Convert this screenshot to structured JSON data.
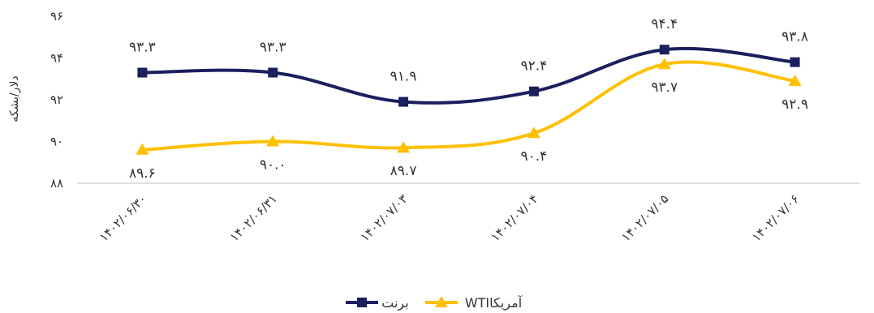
{
  "chart_data": {
    "type": "line",
    "title": "",
    "xlabel": "",
    "ylabel": "دلار/بشکه",
    "ylim": [
      88,
      96
    ],
    "y_ticks": [
      "۸۸",
      "۹۰",
      "۹۲",
      "۹۴",
      "۹۶"
    ],
    "categories": [
      "۱۴۰۲/۰۶/۳۰",
      "۱۴۰۲/۰۶/۳۱",
      "۱۴۰۲/۰۷/۰۳",
      "۱۴۰۲/۰۷/۰۴",
      "۱۴۰۲/۰۷/۰۵",
      "۱۴۰۲/۰۷/۰۶"
    ],
    "grid": false,
    "legend_position": "bottom",
    "series": [
      {
        "name": "برنت",
        "color": "#1a1f5e",
        "marker": "square",
        "values": [
          93.3,
          93.3,
          91.9,
          92.4,
          94.4,
          93.8
        ],
        "labels": [
          "۹۳.۳",
          "۹۳.۳",
          "۹۱.۹",
          "۹۲.۴",
          "۹۴.۴",
          "۹۳.۸"
        ]
      },
      {
        "name": "WTIآمریکا",
        "color": "#ffc000",
        "marker": "triangle",
        "values": [
          89.6,
          90.0,
          89.7,
          90.4,
          93.7,
          92.9
        ],
        "labels": [
          "۸۹.۶",
          "۹۰.۰",
          "۸۹.۷",
          "۹۰.۴",
          "۹۳.۷",
          "۹۲.۹"
        ]
      }
    ]
  }
}
